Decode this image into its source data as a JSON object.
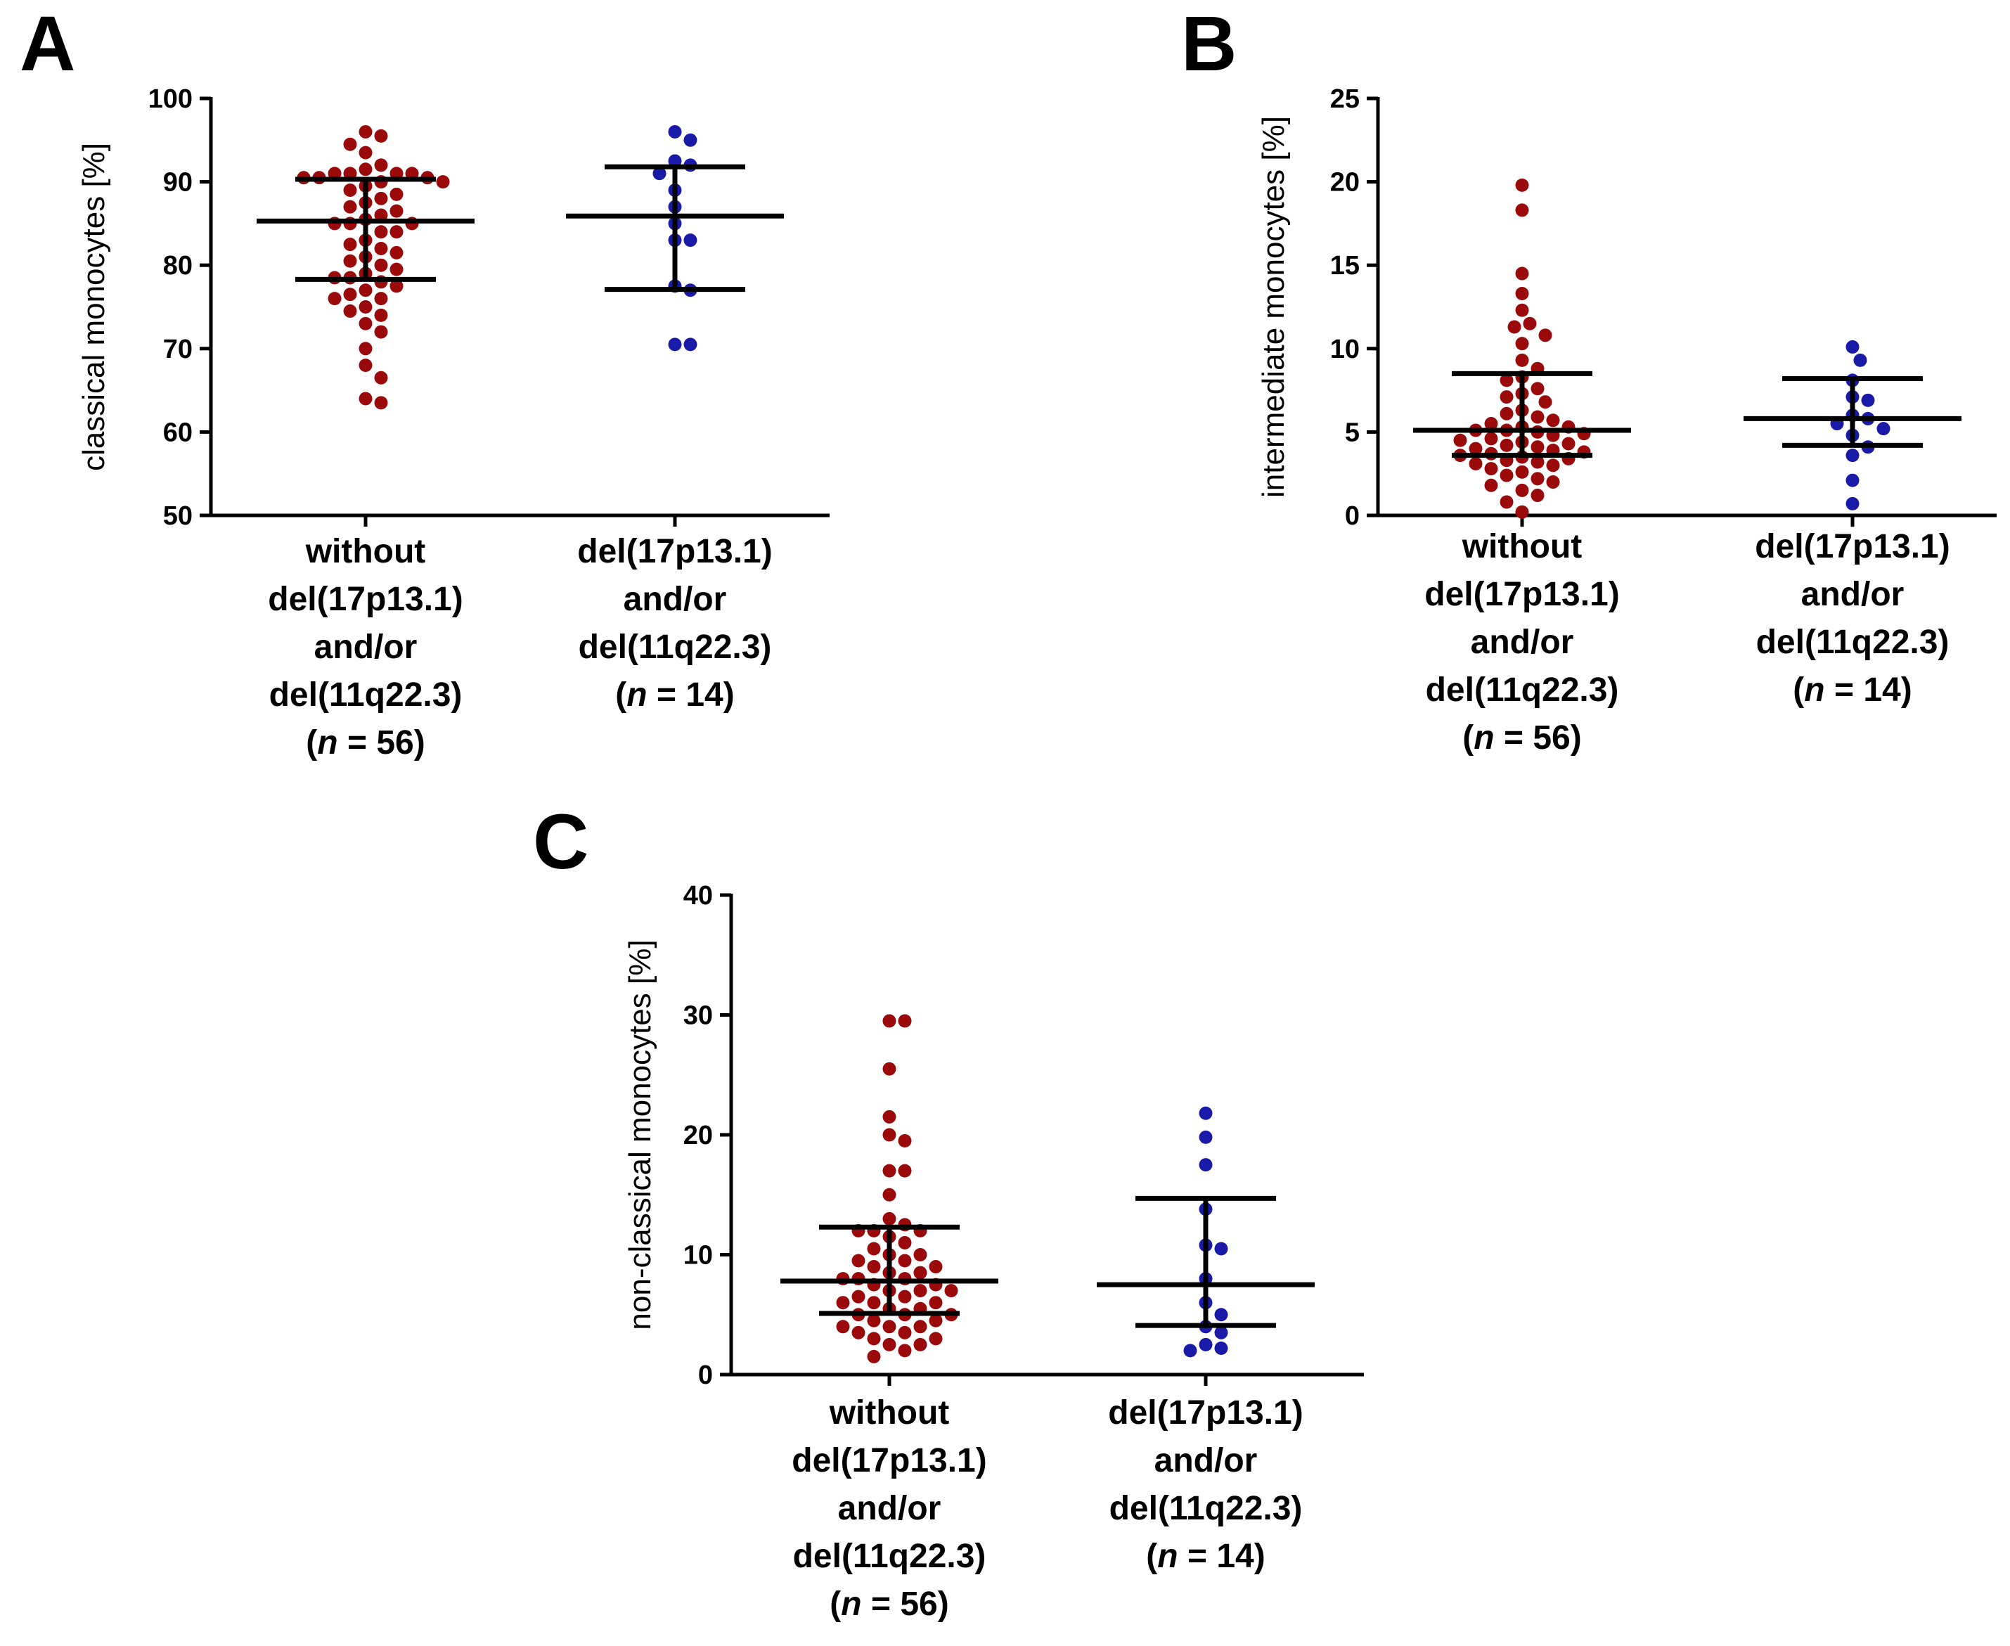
{
  "chart_data": [
    {
      "panel": "A",
      "type": "scatter",
      "ylabel": "classical monocytes [%]",
      "ylim": [
        50,
        100
      ],
      "yticks": [
        50,
        60,
        70,
        80,
        90,
        100
      ],
      "ytick_labels": [
        "50",
        "60",
        "70",
        "80",
        "90",
        "100"
      ],
      "groups": [
        {
          "name": "without del(17p13.1) and/or del(11q22.3) (n = 56)",
          "label_lines": [
            "without",
            "del(17p13.1)",
            "and/or",
            "del(11q22.3)"
          ],
          "n_prefix": "(",
          "n_italic": "n",
          "n_suffix": " = 56)",
          "color": "#9b0a0a",
          "values": [
            96,
            94.5,
            95.5,
            93.5,
            92,
            91.5,
            91,
            91,
            91,
            91,
            90.5,
            90.5,
            90.5,
            90,
            90,
            89.5,
            89,
            88.5,
            88,
            87.5,
            87,
            86.5,
            86,
            85.5,
            85,
            85,
            85,
            84,
            84,
            83,
            82.5,
            82,
            81.5,
            81,
            80.5,
            80,
            79.5,
            79,
            78.5,
            78.5,
            78,
            77.5,
            77,
            76.5,
            76,
            76,
            75,
            74.5,
            74,
            73,
            72,
            70,
            68,
            66.5,
            64,
            63.5
          ],
          "mean": 85.3,
          "err_low": 78.3,
          "err_high": 90.3
        },
        {
          "name": "del(17p13.1) and/or del(11q22.3) (n = 14)",
          "label_lines": [
            "del(17p13.1)",
            "and/or",
            "del(11q22.3)"
          ],
          "n_prefix": "(",
          "n_italic": "n",
          "n_suffix": " = 14)",
          "color": "#1a1aa8",
          "values": [
            96,
            95,
            92.5,
            92,
            91,
            89,
            87,
            85,
            83,
            83,
            77.5,
            77,
            70.5,
            70.5
          ],
          "mean": 85.9,
          "err_low": 77.1,
          "err_high": 91.8
        }
      ]
    },
    {
      "panel": "B",
      "type": "scatter",
      "ylabel": "intermediate monocytes [%]",
      "ylim": [
        0,
        25
      ],
      "yticks": [
        0,
        5,
        10,
        15,
        20,
        25
      ],
      "ytick_labels": [
        "0",
        "5",
        "10",
        "15",
        "20",
        "25"
      ],
      "groups": [
        {
          "name": "without del(17p13.1) and/or del(11q22.3) (n = 56)",
          "label_lines": [
            "without",
            "del(17p13.1)",
            "and/or",
            "del(11q22.3)"
          ],
          "n_prefix": "(",
          "n_italic": "n",
          "n_suffix": " = 56)",
          "color": "#9b0a0a",
          "values": [
            19.8,
            18.3,
            14.5,
            13.3,
            12.3,
            11.5,
            11.3,
            10.8,
            10.3,
            9.3,
            8.8,
            8.3,
            8.1,
            7.6,
            7.3,
            7.1,
            6.8,
            6.3,
            6.1,
            5.9,
            5.7,
            5.5,
            5.3,
            5.3,
            5.1,
            5.1,
            5.0,
            4.9,
            4.8,
            4.6,
            4.5,
            4.4,
            4.3,
            4.2,
            4.1,
            4.0,
            3.9,
            3.8,
            3.7,
            3.6,
            3.5,
            3.4,
            3.3,
            3.2,
            3.1,
            3.0,
            2.8,
            2.6,
            2.4,
            2.2,
            2.0,
            1.8,
            1.5,
            1.2,
            0.8,
            0.2
          ],
          "mean": 5.1,
          "err_low": 3.6,
          "err_high": 8.5
        },
        {
          "name": "del(17p13.1) and/or del(11q22.3) (n = 14)",
          "label_lines": [
            "del(17p13.1)",
            "and/or",
            "del(11q22.3)"
          ],
          "n_prefix": "(",
          "n_italic": "n",
          "n_suffix": " = 14)",
          "color": "#1a1aa8",
          "values": [
            10.1,
            9.3,
            8.1,
            7.1,
            6.9,
            6.0,
            5.8,
            5.5,
            5.2,
            4.8,
            4.1,
            3.6,
            2.1,
            0.7
          ],
          "mean": 5.8,
          "err_low": 4.2,
          "err_high": 8.2
        }
      ]
    },
    {
      "panel": "C",
      "type": "scatter",
      "ylabel": "non-classical monocytes [%]",
      "ylim": [
        0,
        40
      ],
      "yticks": [
        0,
        10,
        20,
        30,
        40
      ],
      "ytick_labels": [
        "0",
        "10",
        "20",
        "30",
        "40"
      ],
      "groups": [
        {
          "name": "without del(17p13.1) and/or del(11q22.3) (n = 56)",
          "label_lines": [
            "without",
            "del(17p13.1)",
            "and/or",
            "del(11q22.3)"
          ],
          "n_prefix": "(",
          "n_italic": "n",
          "n_suffix": " = 56)",
          "color": "#9b0a0a",
          "values": [
            29.5,
            29.5,
            25.5,
            21.5,
            20,
            19.5,
            17,
            17,
            15,
            13,
            12.5,
            12,
            12,
            12,
            11.5,
            11,
            10.5,
            10,
            10,
            9.5,
            9.5,
            9,
            9,
            8.5,
            8.5,
            8,
            8,
            8,
            7.5,
            7.5,
            7,
            7,
            7,
            6.5,
            6.5,
            6,
            6,
            6,
            5.5,
            5.5,
            5,
            5,
            5,
            4.5,
            4.5,
            4,
            4,
            4,
            3.5,
            3.5,
            3,
            3,
            2.5,
            2.5,
            2,
            1.5
          ],
          "mean": 7.8,
          "err_low": 5.1,
          "err_high": 12.3
        },
        {
          "name": "del(17p13.1) and/or del(11q22.3) (n = 14)",
          "label_lines": [
            "del(17p13.1)",
            "and/or",
            "del(11q22.3)"
          ],
          "n_prefix": "(",
          "n_italic": "n",
          "n_suffix": " = 14)",
          "color": "#1a1aa8",
          "values": [
            21.8,
            19.8,
            17.5,
            13.8,
            10.8,
            10.5,
            8,
            6,
            5,
            4,
            3.5,
            2.5,
            2.2,
            2
          ],
          "mean": 7.5,
          "err_low": 4.1,
          "err_high": 14.7
        }
      ]
    }
  ]
}
